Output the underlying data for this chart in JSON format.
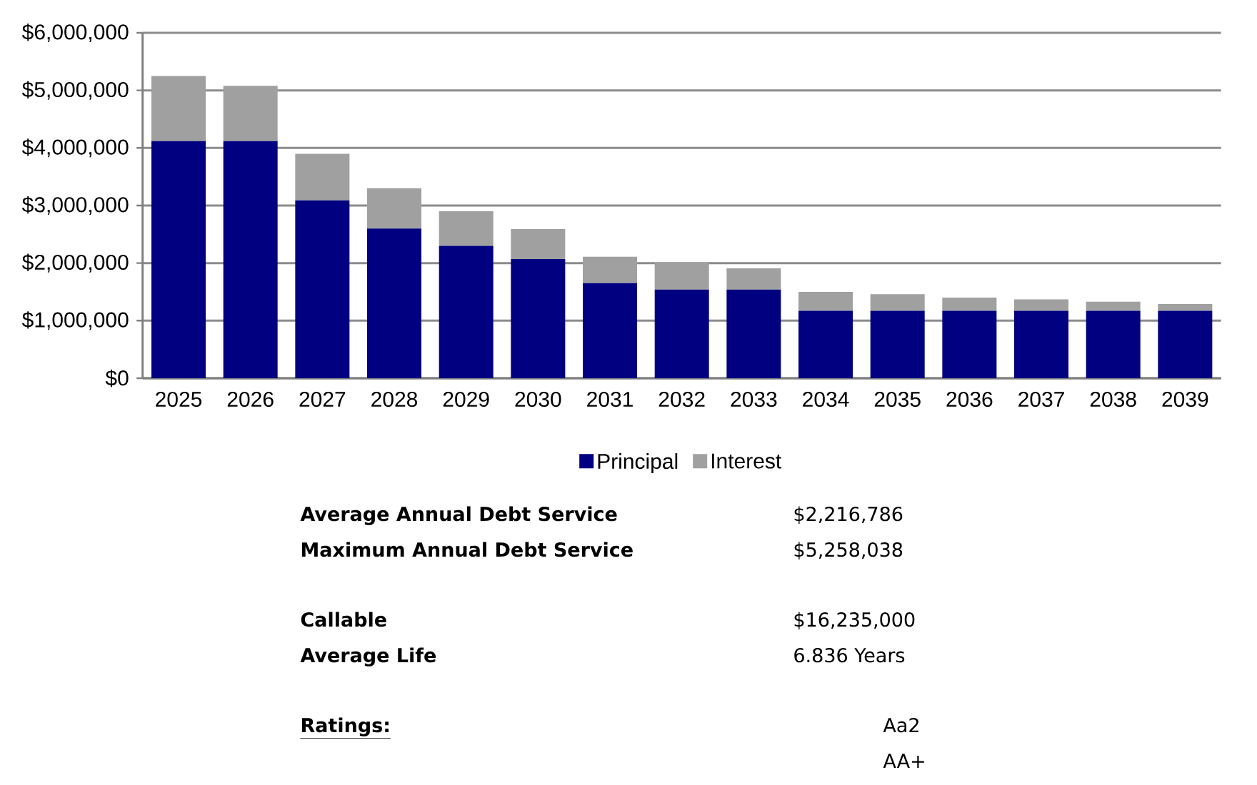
{
  "chart_data": {
    "type": "bar",
    "stacked": true,
    "categories": [
      "2025",
      "2026",
      "2027",
      "2028",
      "2029",
      "2030",
      "2031",
      "2032",
      "2033",
      "2034",
      "2035",
      "2036",
      "2037",
      "2038",
      "2039"
    ],
    "series": [
      {
        "name": "Principal",
        "color": "#000080",
        "values": [
          4120000,
          4120000,
          3090000,
          2600000,
          2300000,
          2070000,
          1650000,
          1540000,
          1540000,
          1170000,
          1170000,
          1170000,
          1170000,
          1170000,
          1170000
        ]
      },
      {
        "name": "Interest",
        "color": "#a0a0a0",
        "values": [
          1130000,
          960000,
          810000,
          700000,
          600000,
          520000,
          460000,
          470000,
          370000,
          330000,
          290000,
          230000,
          200000,
          160000,
          120000
        ]
      }
    ],
    "ylim": [
      0,
      6000000
    ],
    "yticks": [
      {
        "value": 0,
        "label": "$0"
      },
      {
        "value": 1000000,
        "label": "$1,000,000"
      },
      {
        "value": 2000000,
        "label": "$2,000,000"
      },
      {
        "value": 3000000,
        "label": "$3,000,000"
      },
      {
        "value": 4000000,
        "label": "$4,000,000"
      },
      {
        "value": 5000000,
        "label": "$5,000,000"
      },
      {
        "value": 6000000,
        "label": "$6,000,000"
      }
    ],
    "grid": "y",
    "legend": "bottom",
    "annotations": [
      "Average Annual Debt Service",
      "$2,216,786",
      "Maximum Annual Debt Service",
      "$5,258,038",
      "Callable",
      "$16,235,000",
      "Average Life",
      "6.836 Years",
      "Ratings:",
      "Aa2",
      "AA+"
    ]
  }
}
